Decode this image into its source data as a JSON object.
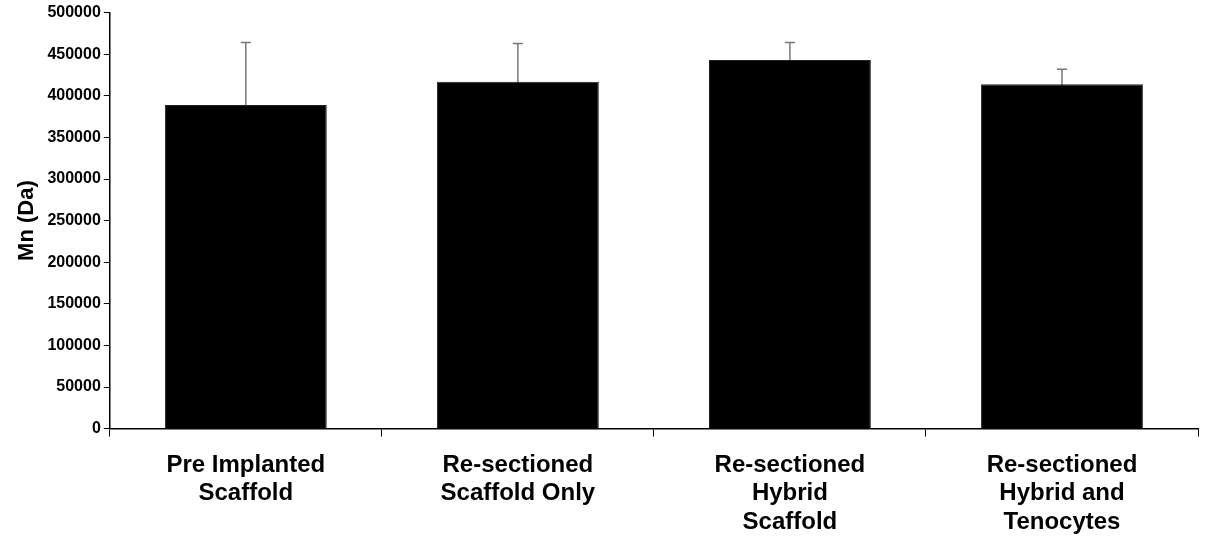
{
  "chart_data": {
    "type": "bar",
    "ylabel": "Mn (Da)",
    "categories": [
      "Pre Implanted Scaffold",
      "Re-sectioned Scaffold Only",
      "Re-sectioned Hybrid Scaffold",
      "Re-sectioned Hybrid and Tenocytes"
    ],
    "values": [
      389000,
      417000,
      443000,
      414000
    ],
    "errors": [
      75000,
      46000,
      21000,
      18000
    ],
    "color": "#000000",
    "ylim": [
      0,
      500000
    ],
    "yticks": [
      0,
      50000,
      100000,
      150000,
      200000,
      250000,
      300000,
      350000,
      400000,
      450000,
      500000
    ],
    "grid": false,
    "legend": false
  }
}
